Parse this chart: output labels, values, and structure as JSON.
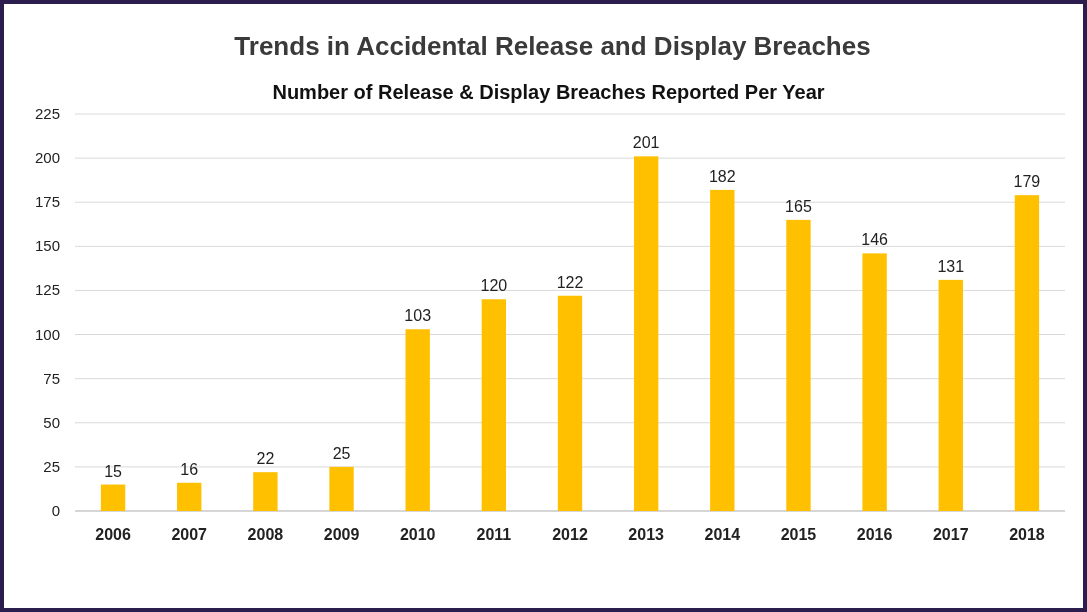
{
  "chart_data": {
    "type": "bar",
    "title": "Trends in Accidental Release and Display Breaches",
    "subtitle": "Number of Release & Display Breaches Reported Per Year",
    "categories": [
      "2006",
      "2007",
      "2008",
      "2009",
      "2010",
      "2011",
      "2012",
      "2013",
      "2014",
      "2015",
      "2016",
      "2017",
      "2018"
    ],
    "values": [
      15,
      16,
      22,
      25,
      103,
      120,
      122,
      201,
      182,
      165,
      146,
      131,
      179
    ],
    "color": "#ffc000",
    "ylim": [
      0,
      225
    ],
    "yticks": [
      0,
      25,
      50,
      75,
      100,
      125,
      150,
      175,
      200,
      225
    ],
    "grid": "y",
    "data_labels": true
  }
}
